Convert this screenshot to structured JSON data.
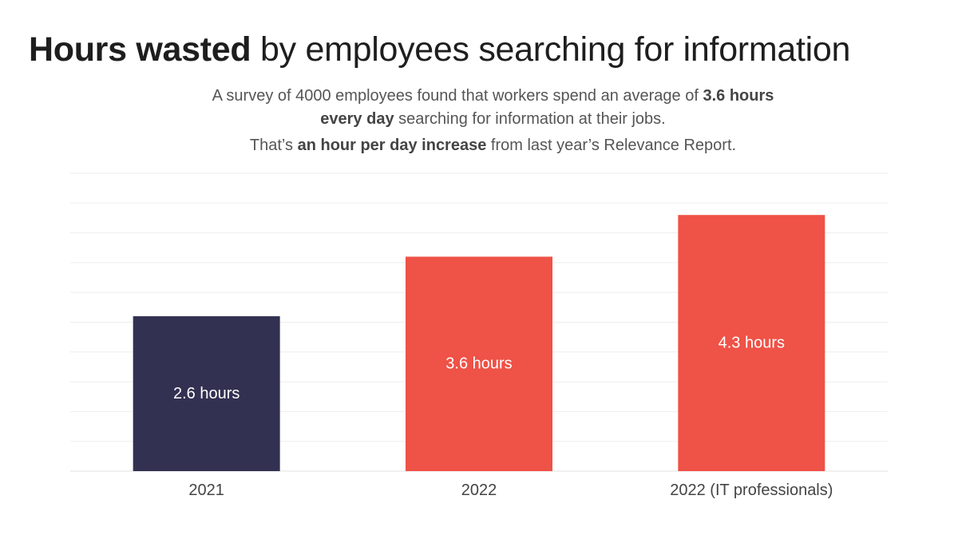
{
  "title": {
    "bold": "Hours wasted",
    "rest": " by employees searching for information"
  },
  "subtitle": {
    "line1": [
      {
        "text": "A survey of 4000 employees found that workers spend an average of ",
        "bold": false
      },
      {
        "text": "3.6 hours",
        "bold": true
      }
    ],
    "line2": [
      {
        "text": "every day",
        "bold": true
      },
      {
        "text": " searching for information at their jobs.",
        "bold": false
      }
    ],
    "line3": [
      {
        "text": "That’s ",
        "bold": false
      },
      {
        "text": "an hour per day increase",
        "bold": true
      },
      {
        "text": " from last year’s Relevance Report.",
        "bold": false
      }
    ]
  },
  "chart_data": {
    "type": "bar",
    "categories": [
      "2021",
      "2022",
      "2022 (IT professionals)"
    ],
    "values": [
      2.6,
      3.6,
      4.3
    ],
    "data_labels": [
      "2.6 hours",
      "3.6 hours",
      "4.3 hours"
    ],
    "colors": [
      "#323152",
      "#ef5246",
      "#ef5246"
    ],
    "ylim": [
      0,
      5
    ],
    "grid": true,
    "grid_step": 0.5,
    "y_tick_labels_shown": false,
    "xlabel": "",
    "ylabel": ""
  }
}
